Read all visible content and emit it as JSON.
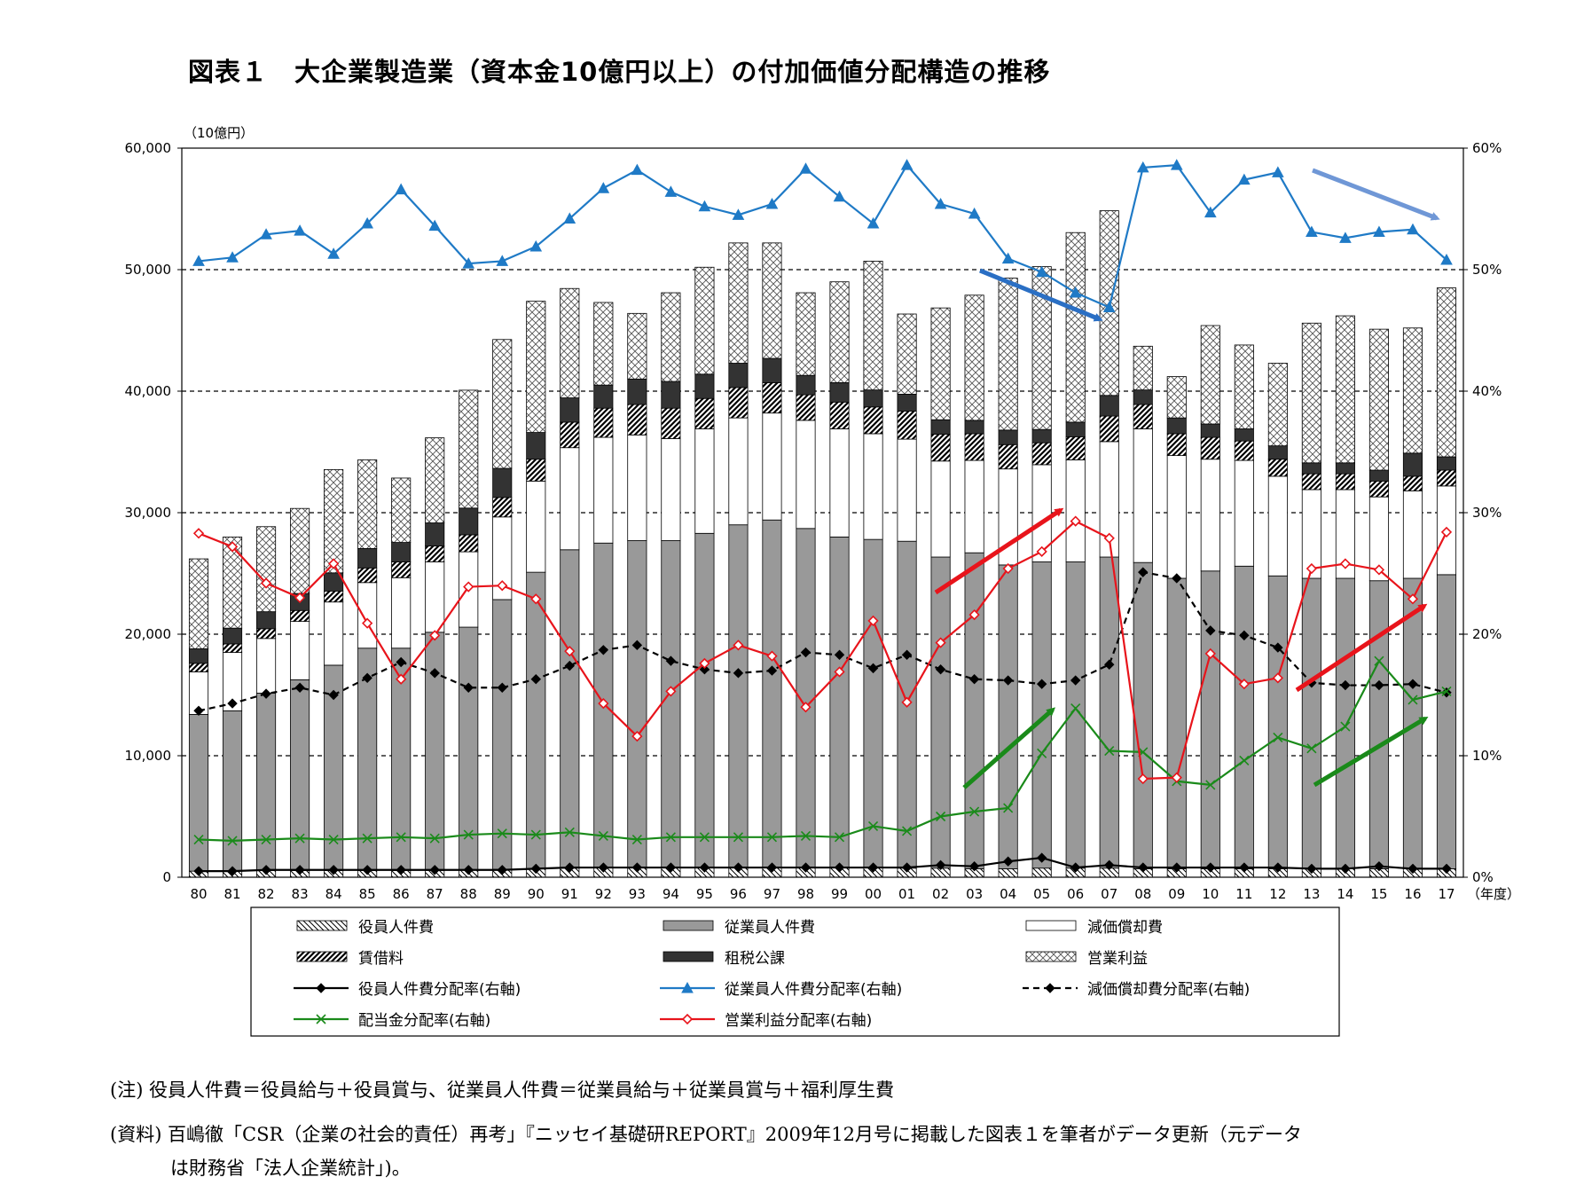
{
  "title": "図表１　大企業製造業（資本金10億円以上）の付加価値分配構造の推移",
  "notes": {
    "note1": "(注)  役員人件費＝役員給与＋役員賞与、従業員人件費＝従業員給与＋従業員賞与＋福利厚生費",
    "note2_line1": "(資料)  百嶋徹「CSR（企業の社会的責任）再考」『ニッセイ基礎研REPORT』2009年12月号に掲載した図表１を筆者がデータ更新（元データ",
    "note2_line2": "は財務省「法人企業統計」)。"
  },
  "chart_data": {
    "type": "bar",
    "stacked": true,
    "left_axis_unit": "（10億円）",
    "x_axis_unit": "（年度）",
    "categories": [
      "80",
      "81",
      "82",
      "83",
      "84",
      "85",
      "86",
      "87",
      "88",
      "89",
      "90",
      "91",
      "92",
      "93",
      "94",
      "95",
      "96",
      "97",
      "98",
      "99",
      "00",
      "01",
      "02",
      "03",
      "04",
      "05",
      "06",
      "07",
      "08",
      "09",
      "10",
      "11",
      "12",
      "13",
      "14",
      "15",
      "16",
      "17"
    ],
    "ylim_left": [
      0,
      60000
    ],
    "yticks_left": [
      "0",
      "10,000",
      "20,000",
      "30,000",
      "40,000",
      "50,000",
      "60,000"
    ],
    "ylim_right": [
      0,
      60
    ],
    "yticks_right": [
      "0%",
      "10%",
      "20%",
      "30%",
      "40%",
      "50%",
      "60%"
    ],
    "grid": "dashed horizontal at 50,000 / 40,000 / 30,000 / 20,000 / 10,000",
    "legend_placement": "bottom",
    "bar_series": [
      {
        "name": "役員人件費",
        "color": "#ffffff",
        "pattern": "hatch-diag",
        "values": [
          500,
          500,
          550,
          550,
          550,
          550,
          550,
          560,
          580,
          650,
          700,
          750,
          800,
          800,
          800,
          800,
          800,
          800,
          800,
          800,
          800,
          750,
          750,
          700,
          700,
          750,
          750,
          750,
          700,
          700,
          700,
          700,
          700,
          700,
          700,
          700,
          700,
          700
        ]
      },
      {
        "name": "従業員人件費",
        "color": "#999999",
        "pattern": "solid",
        "values": [
          12900,
          13200,
          14600,
          15700,
          16900,
          18300,
          18300,
          19600,
          20000,
          22200,
          24400,
          26200,
          26700,
          26900,
          26900,
          27500,
          28200,
          28600,
          27900,
          27200,
          27000,
          26900,
          25600,
          26000,
          25000,
          25200,
          25200,
          25600,
          25200,
          23900,
          24500,
          24900,
          24100,
          23900,
          23900,
          23700,
          23900,
          24200
        ]
      },
      {
        "name": "減価償却費",
        "color": "#ffffff",
        "pattern": "solid",
        "values": [
          3500,
          4800,
          4500,
          4800,
          5200,
          5400,
          5800,
          5800,
          6200,
          6800,
          7500,
          8400,
          8700,
          8700,
          8400,
          8600,
          8800,
          8800,
          8900,
          8900,
          8700,
          8400,
          7900,
          7600,
          7900,
          8000,
          8400,
          9500,
          11000,
          10100,
          9200,
          8700,
          8200,
          7300,
          7300,
          6900,
          7200,
          7300
        ]
      },
      {
        "name": "賃借料",
        "color": "#ffffff",
        "pattern": "hatch-thick",
        "values": [
          700,
          700,
          800,
          900,
          900,
          1200,
          1300,
          1300,
          1400,
          1600,
          1800,
          2100,
          2400,
          2500,
          2500,
          2500,
          2500,
          2500,
          2100,
          2200,
          2200,
          2300,
          2200,
          2200,
          2000,
          1800,
          1900,
          2100,
          2000,
          1800,
          1800,
          1600,
          1400,
          1300,
          1300,
          1300,
          1200,
          1300
        ]
      },
      {
        "name": "租税公課",
        "color": "#333333",
        "pattern": "solid",
        "values": [
          1200,
          1300,
          1400,
          1400,
          1500,
          1600,
          1600,
          1900,
          2200,
          2400,
          2200,
          2000,
          1900,
          2100,
          2200,
          2000,
          2000,
          2000,
          1600,
          1600,
          1400,
          1400,
          1200,
          1100,
          1200,
          1100,
          1200,
          1700,
          1200,
          1300,
          1100,
          1000,
          1100,
          900,
          900,
          900,
          1900,
          1100
        ]
      },
      {
        "name": "営業利益",
        "color": "#ffffff",
        "pattern": "crosshatch",
        "values": [
          7400,
          7500,
          7000,
          7000,
          8500,
          7300,
          5300,
          7000,
          9700,
          10600,
          10800,
          9000,
          6800,
          5400,
          7300,
          8800,
          9900,
          9500,
          6800,
          8300,
          10600,
          6600,
          9200,
          10300,
          12500,
          13400,
          15600,
          15200,
          3600,
          3400,
          8100,
          6900,
          6800,
          11500,
          12100,
          11600,
          10300,
          13900
        ]
      }
    ],
    "line_series": [
      {
        "name": "役員人件費分配率(右軸)",
        "color": "#000000",
        "marker": "diamond-filled",
        "style": "solid",
        "values": [
          0.5,
          0.5,
          0.6,
          0.6,
          0.6,
          0.6,
          0.6,
          0.6,
          0.6,
          0.6,
          0.7,
          0.8,
          0.8,
          0.8,
          0.8,
          0.8,
          0.8,
          0.8,
          0.8,
          0.8,
          0.8,
          0.8,
          1.0,
          0.9,
          1.3,
          1.6,
          0.8,
          1.0,
          0.8,
          0.8,
          0.8,
          0.8,
          0.8,
          0.7,
          0.7,
          0.9,
          0.7,
          0.7
        ]
      },
      {
        "name": "従業員人件費分配率(右軸)",
        "color": "#1f7ac6",
        "marker": "triangle",
        "style": "solid",
        "values": [
          50.7,
          51.0,
          52.9,
          53.2,
          51.3,
          53.8,
          56.6,
          53.6,
          50.5,
          50.7,
          51.9,
          54.2,
          56.7,
          58.2,
          56.4,
          55.2,
          54.5,
          55.4,
          58.3,
          56.0,
          53.8,
          58.6,
          55.4,
          54.6,
          50.9,
          49.8,
          48.1,
          46.9,
          58.4,
          58.6,
          54.7,
          57.4,
          58.0,
          53.1,
          52.6,
          53.1,
          53.3,
          50.8
        ]
      },
      {
        "name": "減価償却費分配率(右軸)",
        "color": "#000000",
        "marker": "diamond-filled",
        "style": "dashed",
        "values": [
          13.7,
          14.3,
          15.1,
          15.6,
          15.0,
          16.4,
          17.7,
          16.8,
          15.6,
          15.6,
          16.3,
          17.4,
          18.7,
          19.1,
          17.8,
          17.1,
          16.8,
          17.0,
          18.5,
          18.3,
          17.2,
          18.3,
          17.1,
          16.3,
          16.2,
          15.9,
          16.2,
          17.5,
          25.1,
          24.6,
          20.3,
          19.9,
          18.9,
          16.0,
          15.8,
          15.8,
          15.9,
          15.2
        ]
      },
      {
        "name": "配当金分配率(右軸)",
        "color": "#1a8a1a",
        "marker": "x",
        "style": "solid",
        "values": [
          3.1,
          3.0,
          3.1,
          3.2,
          3.1,
          3.2,
          3.3,
          3.2,
          3.5,
          3.6,
          3.5,
          3.7,
          3.4,
          3.1,
          3.3,
          3.3,
          3.3,
          3.3,
          3.4,
          3.3,
          4.2,
          3.8,
          5.0,
          5.4,
          5.7,
          10.2,
          13.9,
          10.4,
          10.3,
          7.9,
          7.6,
          9.6,
          11.5,
          10.6,
          12.4,
          17.8,
          14.6,
          15.3
        ]
      },
      {
        "name": "営業利益分配率(右軸)",
        "color": "#e8141b",
        "marker": "diamond-open",
        "style": "solid",
        "values": [
          28.3,
          27.2,
          24.2,
          23.0,
          25.8,
          20.9,
          16.3,
          19.9,
          23.9,
          24.0,
          22.9,
          18.6,
          14.3,
          11.6,
          15.3,
          17.6,
          19.1,
          18.2,
          14.0,
          16.9,
          21.1,
          14.4,
          19.3,
          21.6,
          25.4,
          26.8,
          29.3,
          27.9,
          8.1,
          8.2,
          18.4,
          15.9,
          16.4,
          25.4,
          25.8,
          25.3,
          22.9,
          28.4
        ]
      }
    ]
  }
}
